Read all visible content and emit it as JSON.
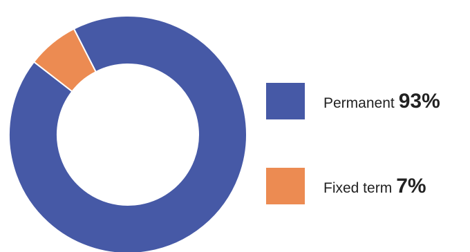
{
  "chart_data": {
    "type": "pie",
    "variant": "donut",
    "title": "",
    "categories": [
      "Permanent",
      "Fixed term"
    ],
    "values": [
      93,
      7
    ],
    "unit": "%",
    "colors": [
      "#4659a6",
      "#ec8b52"
    ],
    "legend_placement": "right"
  },
  "legend": [
    {
      "label": "Permanent",
      "value": "93%",
      "color": "#4659a6"
    },
    {
      "label": "Fixed term",
      "value": "7%",
      "color": "#ec8b52"
    }
  ]
}
